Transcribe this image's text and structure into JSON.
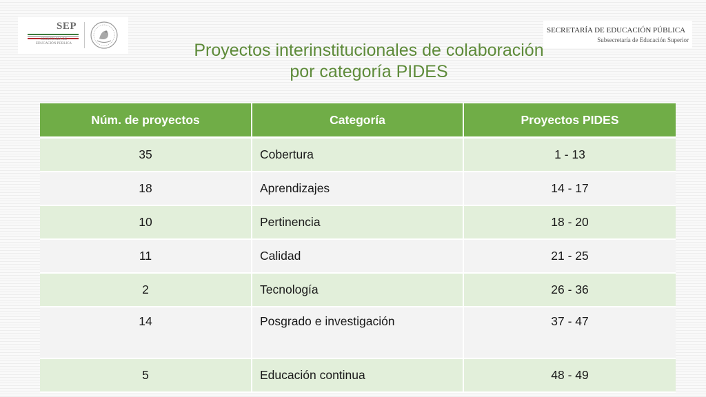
{
  "logo_left": {
    "word": "SEP",
    "subtitle_lines": [
      "SECRETARÍA DE",
      "EDUCACIÓN PÚBLICA"
    ],
    "stripe_colors": [
      "#3c7b3c",
      "#bfbfbf",
      "#b5282e"
    ]
  },
  "logo_right": {
    "title": "SECRETARÍA DE EDUCACIÓN PÚBLICA",
    "subtitle": "Subsecretaría de Educación Superior"
  },
  "title": {
    "line1": "Proyectos interinstitucionales de colaboración",
    "line2": "por categoría PIDES"
  },
  "table": {
    "headers": [
      "Núm. de proyectos",
      "Categoría",
      "Proyectos PIDES"
    ],
    "rows": [
      {
        "num": "35",
        "category": "Cobertura",
        "pides": "1 - 13"
      },
      {
        "num": "18",
        "category": "Aprendizajes",
        "pides": "14 - 17"
      },
      {
        "num": "10",
        "category": "Pertinencia",
        "pides": "18 - 20"
      },
      {
        "num": "11",
        "category": "Calidad",
        "pides": "21 - 25"
      },
      {
        "num": "2",
        "category": "Tecnología",
        "pides": "26 - 36"
      },
      {
        "num": "14",
        "category": "Posgrado e investigación",
        "pides": "37 - 47"
      },
      {
        "num": "5",
        "category": "Educación continua",
        "pides": "48 - 49"
      }
    ]
  },
  "colors": {
    "header_green": "#70ad47",
    "title_green": "#5e8b3a",
    "row_light_green": "#e2efda",
    "row_light_gray": "#f3f3f3"
  }
}
